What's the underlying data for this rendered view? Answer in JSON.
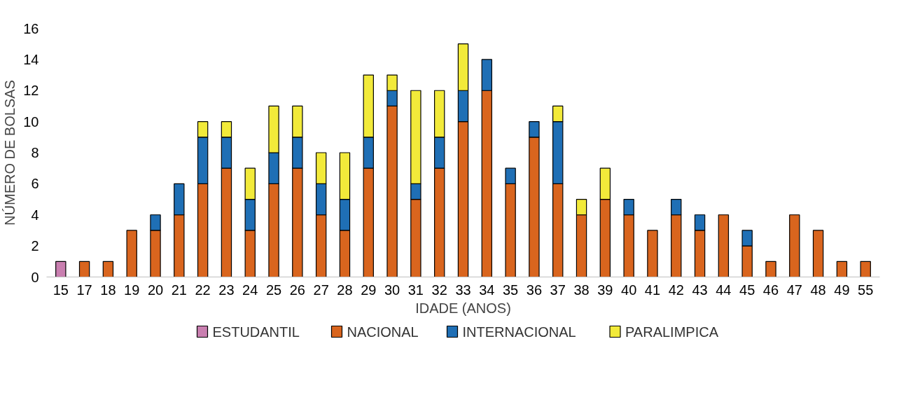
{
  "chart_data": {
    "type": "bar",
    "stacked": true,
    "xlabel": "IDADE (ANOS)",
    "ylabel": "NÚMERO DE BOLSAS",
    "categories": [
      "15",
      "17",
      "18",
      "19",
      "20",
      "21",
      "22",
      "23",
      "24",
      "25",
      "26",
      "27",
      "28",
      "29",
      "30",
      "31",
      "32",
      "33",
      "34",
      "35",
      "36",
      "37",
      "38",
      "39",
      "40",
      "41",
      "42",
      "43",
      "44",
      "45",
      "46",
      "47",
      "48",
      "49",
      "55"
    ],
    "series": [
      {
        "name": "ESTUDANTIL",
        "color": "#c97fb0",
        "values": [
          1,
          null,
          null,
          null,
          null,
          null,
          null,
          null,
          null,
          null,
          null,
          null,
          null,
          null,
          null,
          null,
          null,
          null,
          null,
          null,
          null,
          null,
          null,
          null,
          null,
          null,
          null,
          null,
          null,
          null,
          null,
          null,
          null,
          null,
          null
        ]
      },
      {
        "name": "NACIONAL",
        "color": "#d9651e",
        "values": [
          null,
          1,
          1,
          3,
          3,
          4,
          6,
          7,
          3,
          6,
          7,
          4,
          3,
          7,
          11,
          5,
          7,
          10,
          12,
          6,
          9,
          6,
          4,
          5,
          4,
          3,
          4,
          3,
          4,
          2,
          1,
          4,
          3,
          1,
          1
        ]
      },
      {
        "name": "INTERNACIONAL",
        "color": "#1f6fb5",
        "values": [
          null,
          null,
          null,
          null,
          1,
          2,
          3,
          2,
          2,
          2,
          2,
          2,
          2,
          2,
          1,
          1,
          2,
          2,
          2,
          1,
          1,
          4,
          null,
          null,
          1,
          null,
          1,
          1,
          null,
          1,
          null,
          null,
          null,
          null,
          null
        ]
      },
      {
        "name": "PARALIMPICA",
        "color": "#f2ea3a",
        "values": [
          null,
          null,
          null,
          null,
          null,
          null,
          1,
          1,
          2,
          3,
          2,
          2,
          3,
          4,
          1,
          6,
          3,
          3,
          null,
          null,
          null,
          1,
          1,
          2,
          null,
          null,
          null,
          null,
          null,
          null,
          null,
          null,
          null,
          null,
          null
        ]
      }
    ],
    "ylim": [
      0,
      16
    ],
    "yticks": [
      0,
      2,
      4,
      6,
      8,
      10,
      12,
      14,
      16
    ],
    "grid": false,
    "legend": "bottom"
  }
}
